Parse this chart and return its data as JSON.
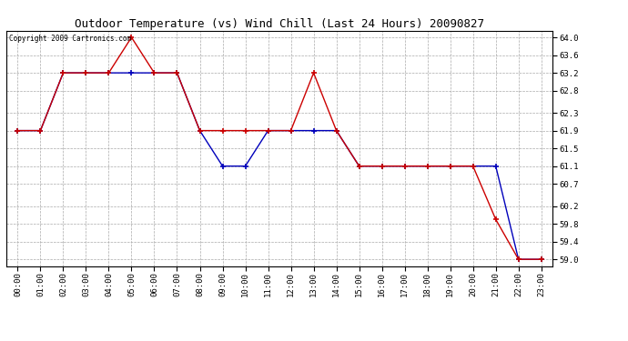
{
  "title": "Outdoor Temperature (vs) Wind Chill (Last 24 Hours) 20090827",
  "copyright": "Copyright 2009 Cartronics.com",
  "x_labels": [
    "00:00",
    "01:00",
    "02:00",
    "03:00",
    "04:00",
    "05:00",
    "06:00",
    "07:00",
    "08:00",
    "09:00",
    "10:00",
    "11:00",
    "12:00",
    "13:00",
    "14:00",
    "15:00",
    "16:00",
    "17:00",
    "18:00",
    "19:00",
    "20:00",
    "21:00",
    "22:00",
    "23:00"
  ],
  "temp_y": [
    61.9,
    61.9,
    63.2,
    63.2,
    63.2,
    64.0,
    63.2,
    63.2,
    61.9,
    61.9,
    61.9,
    61.9,
    61.9,
    63.2,
    61.9,
    61.1,
    61.1,
    61.1,
    61.1,
    61.1,
    61.1,
    59.9,
    59.0,
    59.0
  ],
  "windchill_y": [
    61.9,
    61.9,
    63.2,
    63.2,
    63.2,
    63.2,
    63.2,
    63.2,
    61.9,
    61.1,
    61.1,
    61.9,
    61.9,
    61.9,
    61.9,
    61.1,
    61.1,
    61.1,
    61.1,
    61.1,
    61.1,
    61.1,
    59.0,
    59.0
  ],
  "temp_color": "#cc0000",
  "windchill_color": "#0000bb",
  "bg_color": "#ffffff",
  "grid_color": "#aaaaaa",
  "ylim_min": 58.85,
  "ylim_max": 64.15,
  "yticks": [
    59.0,
    59.4,
    59.8,
    60.2,
    60.7,
    61.1,
    61.5,
    61.9,
    62.3,
    62.8,
    63.2,
    63.6,
    64.0
  ],
  "title_fontsize": 9,
  "tick_fontsize": 6.5,
  "copyright_fontsize": 5.5
}
